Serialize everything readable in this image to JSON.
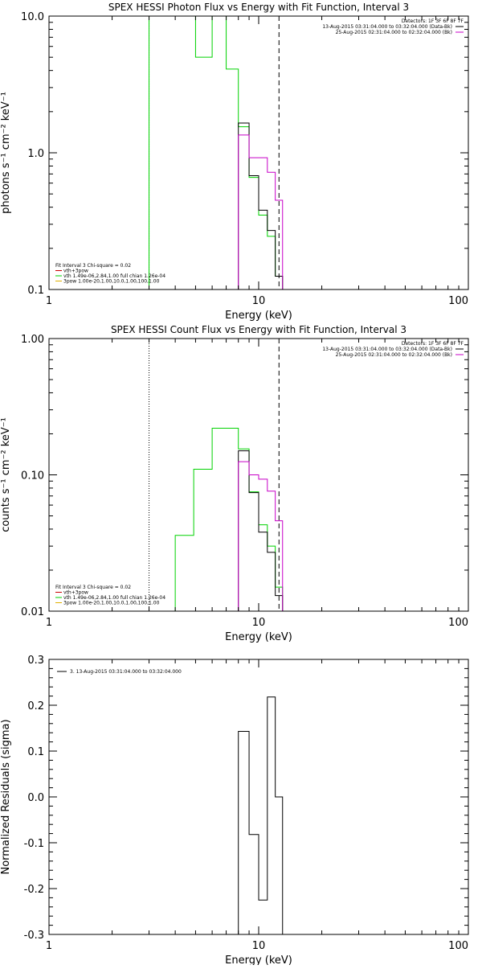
{
  "colors": {
    "black": "#000000",
    "green": "#00d200",
    "magenta": "#c800c8"
  },
  "chart_data": [
    {
      "type": "line",
      "title": "SPEX HESSI Photon Flux vs Energy with Fit Function, Interval 3",
      "xlabel": "Energy (keV)",
      "ylabel": "photons s⁻¹ cm⁻² keV⁻¹",
      "xscale": "log",
      "yscale": "log",
      "xlim": [
        1,
        100
      ],
      "ylim": [
        0.1,
        10
      ],
      "x_ticks": [
        {
          "value": 1,
          "label": "1"
        },
        {
          "value": 10,
          "label": "10"
        },
        {
          "value": 100,
          "label": "100"
        }
      ],
      "y_ticks": [
        {
          "value": 0.1,
          "label": "0.1"
        },
        {
          "value": 1,
          "label": "1.0"
        },
        {
          "value": 10,
          "label": "10.0"
        }
      ],
      "detectors_label": "Detectors: 1F 3F 6F 8F 7F",
      "legend_top": [
        {
          "text": "13-Aug-2015 03:31:04.000 to 03:32:04.000 (Data-Bk)",
          "color": "#000000"
        },
        {
          "text": "25-Aug-2015 02:31:04.000 to 02:32:04.000 (Bk)",
          "color": "#c800c8"
        }
      ],
      "fit_info": [
        {
          "text": "Fit Interval 3   Chi-square = 0.02",
          "color": null
        },
        {
          "text": "vth+3pow",
          "color": "#c80000"
        },
        {
          "text": "vth 1.49e-06,2.84,1.00  full chian 1.26e-04",
          "color": "#00d200"
        },
        {
          "text": "3pow 1.00e-20,1.00,10.0,1.00,100,1.00",
          "color": "#e0b000"
        }
      ],
      "vlines": [
        {
          "x": 3.0,
          "style": "dotted",
          "color": "#00a000"
        },
        {
          "x": 12.5,
          "style": "dashed",
          "color": "#000000"
        }
      ],
      "series": [
        {
          "color": "#00d200",
          "edges": [
            3.0,
            4.0,
            5.0,
            6.0,
            7.0,
            8.0,
            9.0,
            10.0,
            11.0,
            12.0,
            13.0,
            14.0
          ],
          "values": [
            10,
            10,
            5.0,
            10,
            4.1,
            1.55,
            0.66,
            0.35,
            0.245,
            0.125,
            0.1
          ]
        },
        {
          "color": "#000000",
          "edges": [
            8.0,
            9.0,
            10.0,
            11.0,
            12.0,
            13.0
          ],
          "values": [
            1.65,
            0.68,
            0.38,
            0.27,
            0.125
          ]
        },
        {
          "color": "#c800c8",
          "edges": [
            8.0,
            9.0,
            10.0,
            11.0,
            12.0,
            13.0,
            14.0
          ],
          "values": [
            1.35,
            0.92,
            0.92,
            0.72,
            0.45,
            0.1
          ]
        }
      ]
    },
    {
      "type": "line",
      "title": "SPEX HESSI Count Flux vs Energy with Fit Function, Interval 3",
      "xlabel": "Energy (keV)",
      "ylabel": "counts s⁻¹ cm⁻² keV⁻¹",
      "xscale": "log",
      "yscale": "log",
      "xlim": [
        1,
        100
      ],
      "ylim": [
        0.01,
        1
      ],
      "x_ticks": [
        {
          "value": 1,
          "label": "1"
        },
        {
          "value": 10,
          "label": "10"
        },
        {
          "value": 100,
          "label": "100"
        }
      ],
      "y_ticks": [
        {
          "value": 0.01,
          "label": "0.01"
        },
        {
          "value": 0.1,
          "label": "0.10"
        },
        {
          "value": 1,
          "label": "1.00"
        }
      ],
      "detectors_label": "Detectors: 1F 3F 6F 8F 7F",
      "legend_top": [
        {
          "text": "13-Aug-2015 03:31:04.000 to 03:32:04.000 (Data-Bk)",
          "color": "#000000"
        },
        {
          "text": "25-Aug-2015 02:31:04.000 to 02:32:04.000 (Bk)",
          "color": "#c800c8"
        }
      ],
      "fit_info": [
        {
          "text": "Fit Interval 3   Chi-square = 0.02",
          "color": null
        },
        {
          "text": "vth+3pow",
          "color": "#c80000"
        },
        {
          "text": "vth 1.49e-06,2.84,1.00  full chian 1.26e-04",
          "color": "#00d200"
        },
        {
          "text": "3pow 1.00e-20,1.00,10.0,1.00,100,1.00",
          "color": "#e0b000"
        }
      ],
      "vlines": [
        {
          "x": 3.0,
          "style": "dotted",
          "color": "#000000"
        },
        {
          "x": 12.5,
          "style": "dashed",
          "color": "#000000"
        }
      ],
      "series": [
        {
          "color": "#00d200",
          "edges": [
            4.0,
            4.9,
            6.0,
            8.0,
            9.0,
            10.0,
            11.0,
            12.0,
            13.0,
            14.0
          ],
          "values": [
            0.036,
            0.11,
            0.22,
            0.155,
            0.075,
            0.043,
            0.03,
            0.015,
            0.01
          ]
        },
        {
          "color": "#000000",
          "edges": [
            8.0,
            9.0,
            10.0,
            11.0,
            12.0,
            13.0
          ],
          "values": [
            0.15,
            0.074,
            0.038,
            0.027,
            0.013
          ]
        },
        {
          "color": "#c800c8",
          "edges": [
            8.0,
            9.0,
            10.0,
            11.0,
            12.0,
            13.0,
            14.0
          ],
          "values": [
            0.125,
            0.1,
            0.093,
            0.076,
            0.046,
            0.01
          ]
        }
      ]
    },
    {
      "type": "line",
      "title": "",
      "xlabel": "Energy (keV)",
      "ylabel": "Normalized Residuals (sigma)",
      "xscale": "log",
      "yscale": "linear",
      "xlim": [
        1,
        100
      ],
      "ylim": [
        -0.3,
        0.3
      ],
      "x_ticks": [
        {
          "value": 1,
          "label": "1"
        },
        {
          "value": 10,
          "label": "10"
        },
        {
          "value": 100,
          "label": "100"
        }
      ],
      "y_ticks": [
        {
          "value": -0.3,
          "label": "-0.3"
        },
        {
          "value": -0.2,
          "label": "-0.2"
        },
        {
          "value": -0.1,
          "label": "-0.1"
        },
        {
          "value": 0.0,
          "label": "0.0"
        },
        {
          "value": 0.1,
          "label": "0.1"
        },
        {
          "value": 0.2,
          "label": "0.2"
        },
        {
          "value": 0.3,
          "label": "0.3"
        }
      ],
      "legend_top": [
        {
          "text": "3. 13-Aug-2015 03:31:04.000 to 03:32:04.000",
          "color": "#000000"
        }
      ],
      "series": [
        {
          "color": "#000000",
          "edges": [
            8.0,
            9.0,
            10.0,
            11.0,
            12.0,
            13.0
          ],
          "values": [
            0.143,
            -0.082,
            -0.225,
            0.218,
            0.0
          ]
        }
      ]
    }
  ]
}
